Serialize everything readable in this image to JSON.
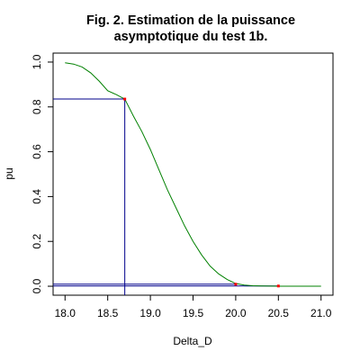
{
  "chart_data": {
    "type": "line",
    "title_lines": [
      "Fig. 2. Estimation de la puissance",
      "asymptotique du test 1b."
    ],
    "xlabel": "Delta_D",
    "ylabel": "pu",
    "xlim": [
      17.86,
      21.14
    ],
    "ylim": [
      -0.04,
      1.04
    ],
    "x_ticks": [
      18.0,
      18.5,
      19.0,
      19.5,
      20.0,
      20.5,
      21.0
    ],
    "x_tick_labels": [
      "18.0",
      "18.5",
      "19.0",
      "19.5",
      "20.0",
      "20.5",
      "21.0"
    ],
    "y_ticks": [
      0.0,
      0.2,
      0.4,
      0.6,
      0.8,
      1.0
    ],
    "y_tick_labels": [
      "0.0",
      "0.2",
      "0.4",
      "0.6",
      "0.8",
      "1.0"
    ],
    "grid": false,
    "legend": "none",
    "series": [
      {
        "color": "#008000",
        "x": [
          18.0,
          18.1,
          18.2,
          18.3,
          18.4,
          18.5,
          18.6,
          18.7,
          18.8,
          18.9,
          19.0,
          19.1,
          19.2,
          19.3,
          19.4,
          19.5,
          19.6,
          19.7,
          19.8,
          19.9,
          20.0,
          20.1,
          20.2,
          20.3,
          20.4,
          20.5,
          20.6,
          20.7,
          20.8,
          20.9,
          21.0
        ],
        "y": [
          0.997,
          0.991,
          0.978,
          0.952,
          0.915,
          0.872,
          0.855,
          0.835,
          0.76,
          0.69,
          0.61,
          0.52,
          0.43,
          0.35,
          0.27,
          0.2,
          0.14,
          0.09,
          0.055,
          0.03,
          0.012,
          0.005,
          0.002,
          0.001,
          0.0005,
          0.0002,
          0.0001,
          0.0,
          0.0,
          0.0,
          0.0
        ]
      }
    ],
    "points": [
      {
        "x": 18.7,
        "y": 0.835,
        "color": "#ff0000"
      },
      {
        "x": 20.0,
        "y": 0.009,
        "color": "#ff0000"
      },
      {
        "x": 20.5,
        "y": 0.001,
        "color": "#ff0000"
      }
    ],
    "guide_lines": [
      {
        "type": "vertical",
        "x": 18.7,
        "y_from": -0.04,
        "y_to": 0.835,
        "color": "#00008b"
      },
      {
        "type": "horizontal",
        "y": 0.835,
        "x_from": 17.86,
        "x_to": 18.7,
        "color": "#00008b"
      },
      {
        "type": "horizontal",
        "y": 0.009,
        "x_from": 17.86,
        "x_to": 20.0,
        "color": "#00008b"
      },
      {
        "type": "horizontal",
        "y": 0.001,
        "x_from": 17.86,
        "x_to": 20.5,
        "color": "#00008b"
      }
    ]
  }
}
